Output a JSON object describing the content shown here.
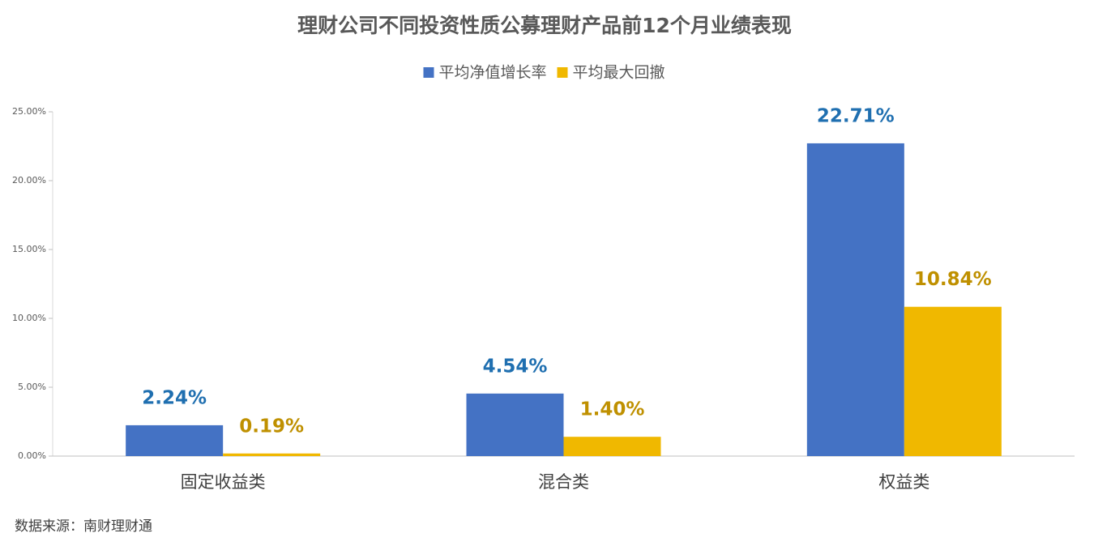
{
  "chart_data": {
    "type": "bar",
    "title": "理财公司不同投资性质公募理财产品前12个月业绩表现",
    "categories": [
      "固定收益类",
      "混合类",
      "权益类"
    ],
    "series": [
      {
        "name": "平均净值增长率",
        "color": "#4472c4",
        "label_color": "#1f6fb0",
        "values": [
          2.24,
          4.54,
          22.71
        ],
        "value_labels": [
          "2.24%",
          "4.54%",
          "22.71%"
        ]
      },
      {
        "name": "平均最大回撤",
        "color": "#f0b800",
        "label_color": "#bf9000",
        "values": [
          0.19,
          1.4,
          10.84
        ],
        "value_labels": [
          "0.19%",
          "1.40%",
          "10.84%"
        ]
      }
    ],
    "ylim": [
      0,
      25
    ],
    "yticks": [
      {
        "value": 0,
        "label": "0.00%"
      },
      {
        "value": 5,
        "label": "5.00%"
      },
      {
        "value": 10,
        "label": "10.00%"
      },
      {
        "value": 15,
        "label": "15.00%"
      },
      {
        "value": 20,
        "label": "20.00%"
      },
      {
        "value": 25,
        "label": "25.00%"
      }
    ],
    "grid": false,
    "legend": "top",
    "source": "数据来源：南财理财通"
  }
}
